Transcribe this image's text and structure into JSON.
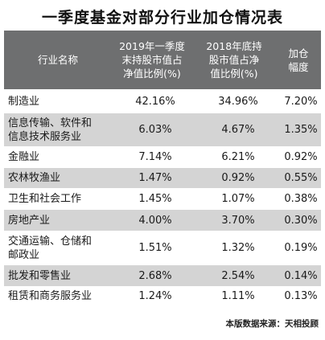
{
  "title": "一季度基金对部分行业加仓情况表",
  "headers": [
    "行业名称",
    "2019年一季度\n末持股市值占\n净值比例(%)",
    "2018年底持\n股市值占净\n值比例(%)",
    "加仓\n幅度"
  ],
  "rows": [
    {
      "industry": "制造业",
      "q1_2019": "42.16%",
      "end_2018": "34.96%",
      "increase": "7.20%"
    },
    {
      "industry": "信息传输、软件和\n信息技术服务业",
      "q1_2019": "6.03%",
      "end_2018": "4.67%",
      "increase": "1.35%"
    },
    {
      "industry": "金融业",
      "q1_2019": "7.14%",
      "end_2018": "6.21%",
      "increase": "0.92%"
    },
    {
      "industry": "农林牧渔业",
      "q1_2019": "1.47%",
      "end_2018": "0.92%",
      "increase": "0.55%"
    },
    {
      "industry": "卫生和社会工作",
      "q1_2019": "1.45%",
      "end_2018": "1.07%",
      "increase": "0.38%"
    },
    {
      "industry": "房地产业",
      "q1_2019": "4.00%",
      "end_2018": "3.70%",
      "increase": "0.30%"
    },
    {
      "industry": "交通运输、仓储和\n邮政业",
      "q1_2019": "1.51%",
      "end_2018": "1.32%",
      "increase": "0.19%"
    },
    {
      "industry": "批发和零售业",
      "q1_2019": "2.68%",
      "end_2018": "2.54%",
      "increase": "0.14%"
    },
    {
      "industry": "租赁和商务服务业",
      "q1_2019": "1.24%",
      "end_2018": "1.11%",
      "increase": "0.13%"
    }
  ],
  "footer": "本版数据来源：天相投顾"
}
